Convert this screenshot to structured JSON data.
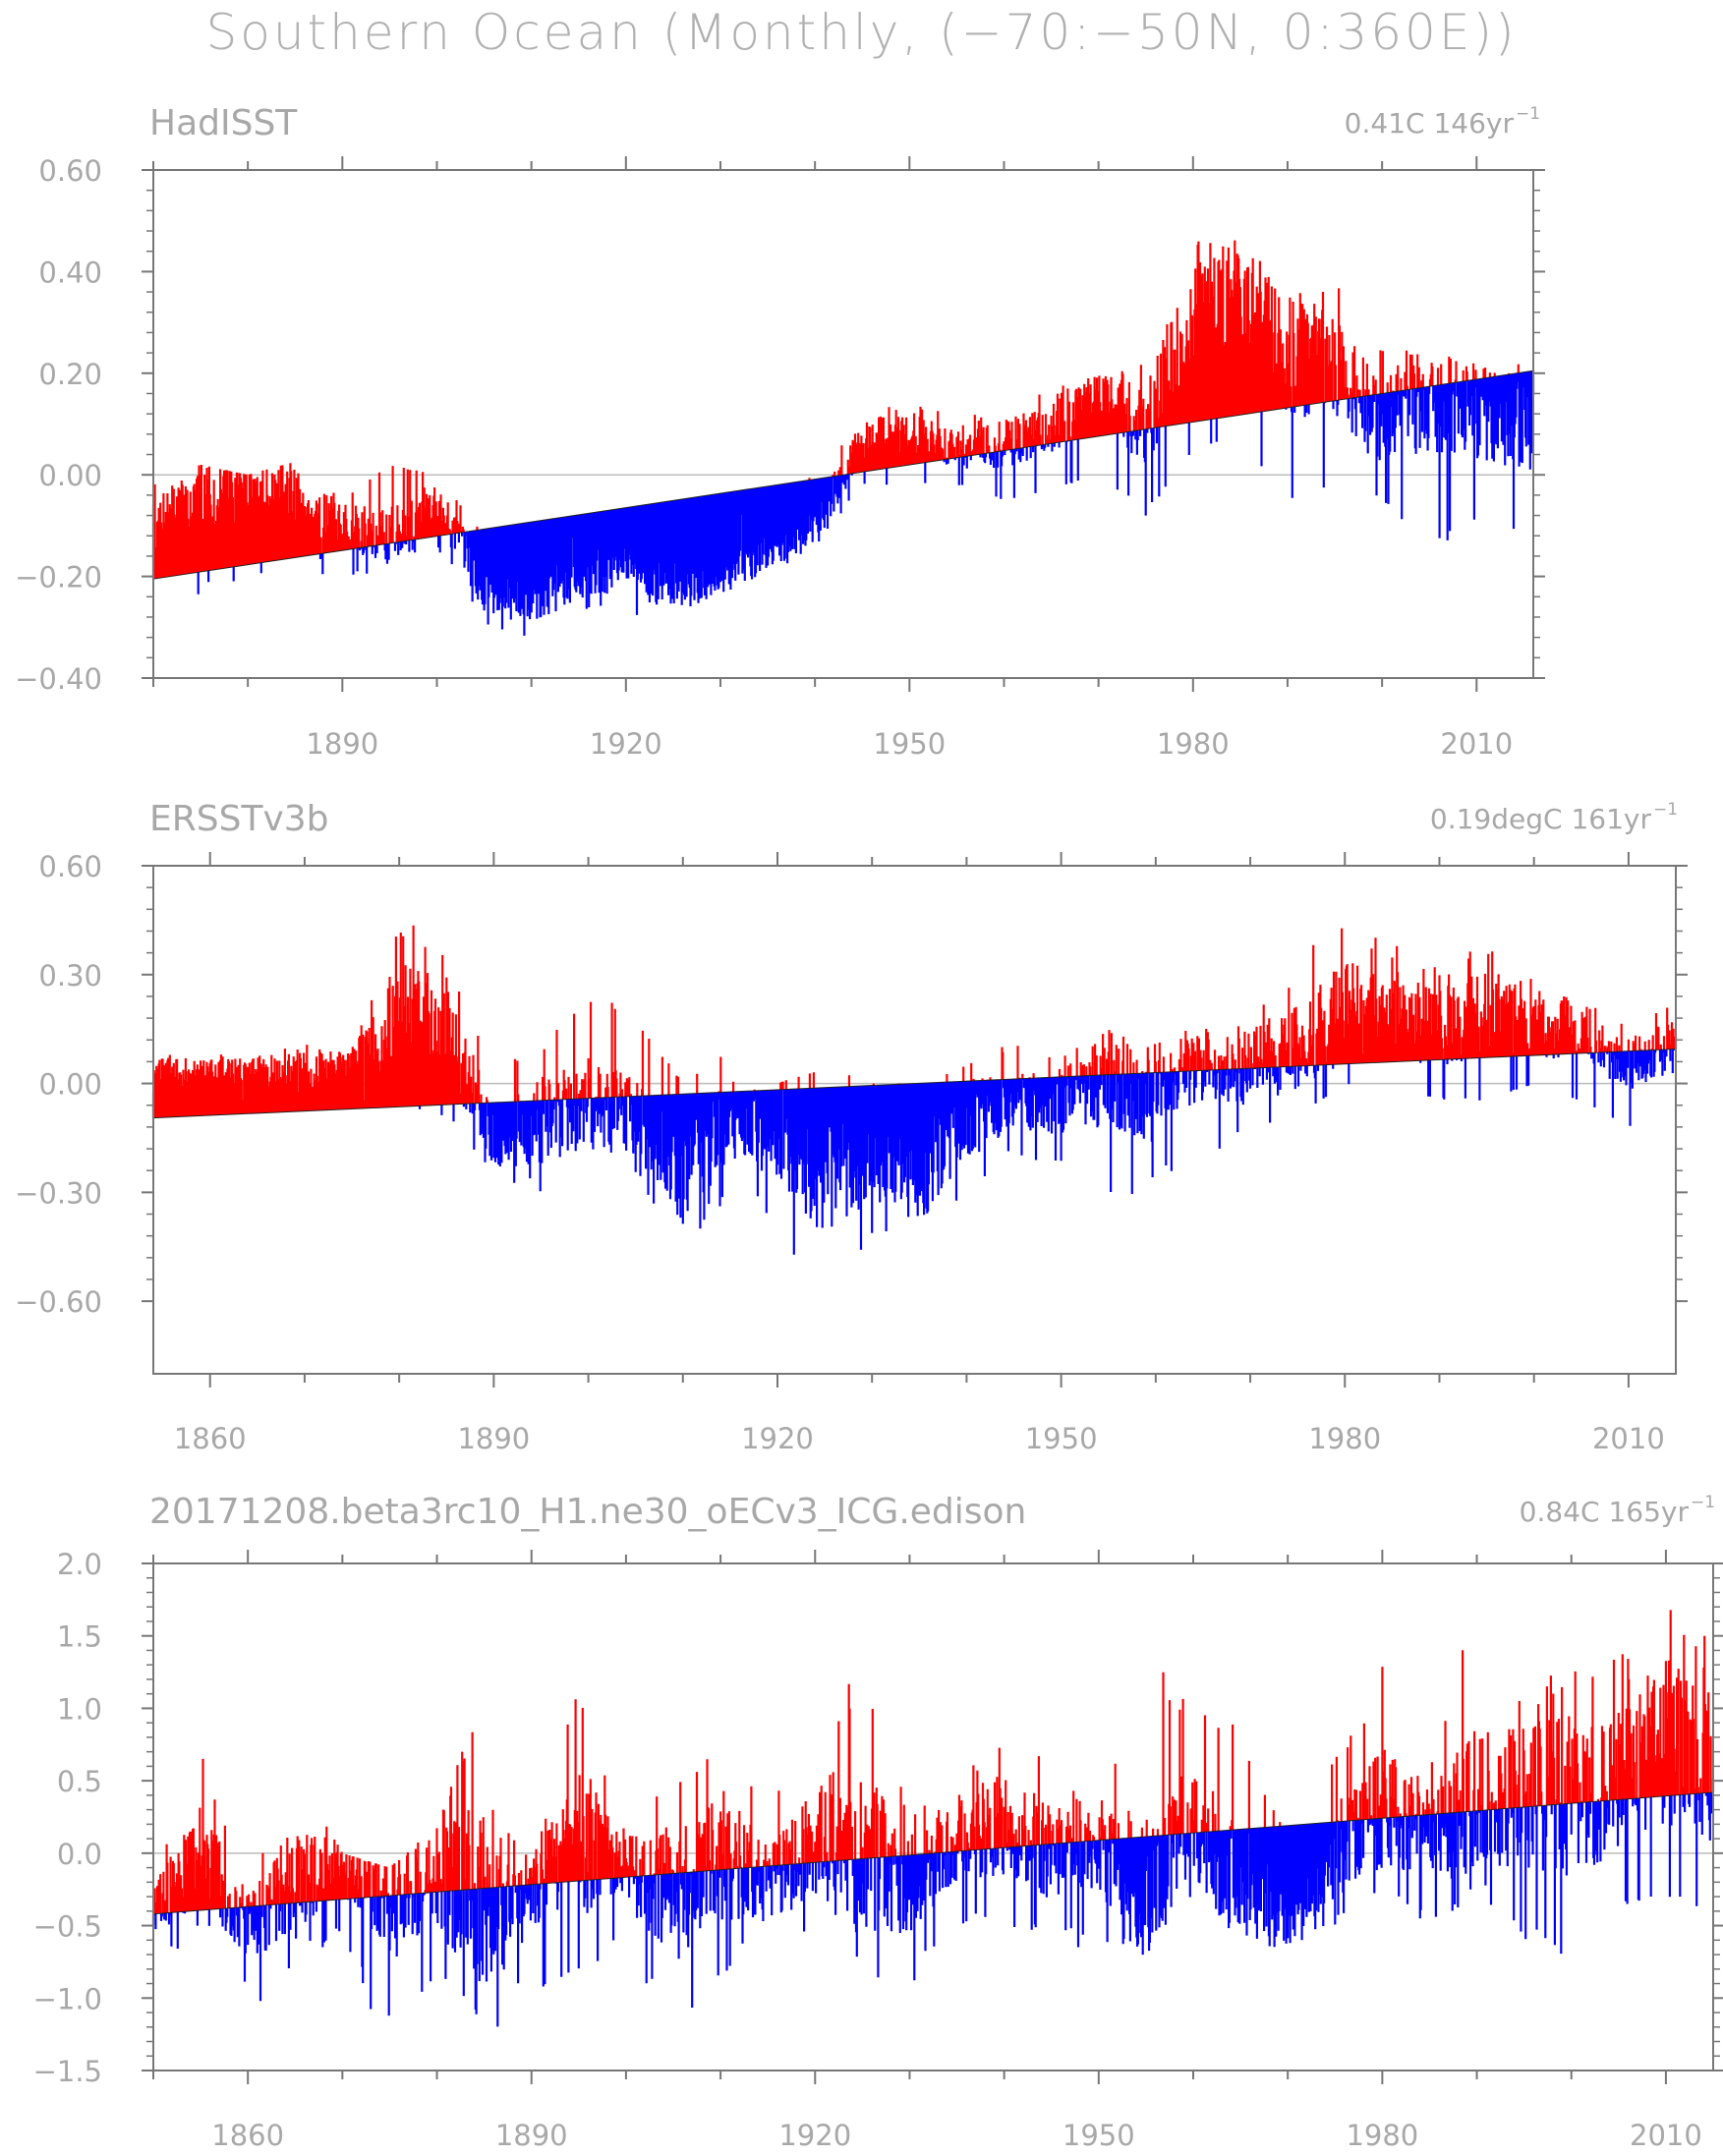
{
  "main_title": "Southern Ocean (Monthly, (−70:−50N, 0:360E))",
  "colors": {
    "positive": "#ff0000",
    "negative": "#0000ff",
    "axis": "#777777",
    "text": "#a8a8a8"
  },
  "chart_data": [
    {
      "type": "area",
      "title": "HadISST",
      "trend_label": "0.41C 146yr",
      "trend_exp": "−1",
      "xlim": [
        1870,
        2016
      ],
      "ylim": [
        -0.4,
        0.6
      ],
      "yticks": [
        -0.4,
        -0.2,
        0.0,
        0.2,
        0.4,
        0.6
      ],
      "ytick_labels": [
        "−0.40",
        "−0.20",
        "0.00",
        "0.20",
        "0.40",
        "0.60"
      ],
      "xticks": [
        1890,
        1920,
        1950,
        1980,
        2010
      ],
      "trend_line": {
        "x": [
          1870,
          2016
        ],
        "y": [
          -0.205,
          0.205
        ]
      },
      "series": [
        {
          "name": "monthly anomaly (approx. annual envelope)",
          "x": [
            1870,
            1875,
            1880,
            1885,
            1890,
            1895,
            1900,
            1905,
            1910,
            1915,
            1920,
            1925,
            1930,
            1935,
            1940,
            1945,
            1950,
            1955,
            1960,
            1965,
            1970,
            1975,
            1980,
            1985,
            1990,
            1995,
            2000,
            2005,
            2010,
            2015
          ],
          "y": [
            -0.1,
            -0.05,
            -0.03,
            -0.05,
            -0.1,
            -0.12,
            -0.05,
            -0.22,
            -0.25,
            -0.2,
            -0.18,
            -0.22,
            -0.2,
            -0.15,
            -0.1,
            0.07,
            0.08,
            0.05,
            0.06,
            0.1,
            0.15,
            0.1,
            0.3,
            0.35,
            0.25,
            0.2,
            0.1,
            0.15,
            0.12,
            0.1
          ],
          "hi": [
            -0.02,
            0.02,
            0.0,
            0.03,
            -0.05,
            0.02,
            0.0,
            -0.12,
            -0.15,
            -0.12,
            -0.1,
            -0.1,
            -0.1,
            -0.05,
            0.0,
            0.12,
            0.15,
            0.12,
            0.12,
            0.18,
            0.2,
            0.22,
            0.48,
            0.52,
            0.4,
            0.38,
            0.25,
            0.28,
            0.25,
            0.22
          ],
          "lo": [
            -0.2,
            -0.25,
            -0.2,
            -0.2,
            -0.2,
            -0.2,
            -0.15,
            -0.3,
            -0.32,
            -0.28,
            -0.28,
            -0.3,
            -0.25,
            -0.2,
            -0.15,
            -0.02,
            -0.02,
            -0.02,
            -0.05,
            -0.03,
            0.0,
            -0.08,
            0.05,
            0.08,
            -0.06,
            -0.02,
            -0.05,
            -0.15,
            -0.1,
            -0.12
          ]
        }
      ]
    },
    {
      "type": "area",
      "title": "ERSSTv3b",
      "trend_label": "0.19degC 161yr",
      "trend_exp": "−1",
      "xlim": [
        1854,
        2015
      ],
      "ylim": [
        -0.8,
        0.6
      ],
      "yticks": [
        -0.6,
        -0.3,
        0.0,
        0.3,
        0.6
      ],
      "ytick_labels": [
        "−0.60",
        "−0.30",
        "0.00",
        "0.30",
        "0.60"
      ],
      "xticks": [
        1860,
        1890,
        1920,
        1950,
        1980,
        2010
      ],
      "trend_line": {
        "x": [
          1854,
          2015
        ],
        "y": [
          -0.095,
          0.095
        ]
      },
      "series": [
        {
          "name": "monthly anomaly (approx. annual envelope)",
          "x": [
            1855,
            1860,
            1865,
            1870,
            1875,
            1880,
            1885,
            1890,
            1895,
            1900,
            1905,
            1910,
            1915,
            1920,
            1925,
            1930,
            1935,
            1940,
            1945,
            1950,
            1955,
            1960,
            1965,
            1970,
            1975,
            1980,
            1985,
            1990,
            1995,
            2000,
            2005,
            2010,
            2014
          ],
          "y": [
            0.02,
            0.03,
            0.04,
            0.02,
            0.05,
            0.2,
            0.15,
            -0.15,
            -0.1,
            -0.05,
            -0.1,
            -0.25,
            -0.1,
            -0.15,
            -0.25,
            -0.2,
            -0.25,
            -0.1,
            -0.05,
            -0.05,
            0.02,
            -0.05,
            0.05,
            0.05,
            0.1,
            0.2,
            0.2,
            0.15,
            0.2,
            0.15,
            0.15,
            0.05,
            0.1
          ],
          "hi": [
            0.08,
            0.08,
            0.08,
            0.12,
            0.1,
            0.5,
            0.35,
            0.05,
            0.1,
            0.25,
            0.2,
            0.0,
            0.1,
            0.0,
            0.05,
            0.0,
            0.0,
            0.05,
            0.12,
            0.08,
            0.15,
            0.12,
            0.18,
            0.25,
            0.32,
            0.52,
            0.42,
            0.35,
            0.38,
            0.3,
            0.25,
            0.15,
            0.22
          ],
          "lo": [
            -0.1,
            -0.05,
            -0.05,
            -0.12,
            -0.05,
            -0.05,
            -0.1,
            -0.25,
            -0.35,
            -0.2,
            -0.25,
            -0.5,
            -0.3,
            -0.4,
            -0.62,
            -0.45,
            -0.52,
            -0.35,
            -0.2,
            -0.25,
            -0.35,
            -0.3,
            -0.2,
            -0.15,
            -0.1,
            0.0,
            -0.02,
            -0.05,
            -0.05,
            0.0,
            -0.05,
            -0.12,
            -0.05
          ]
        }
      ]
    },
    {
      "type": "area",
      "title": "20171208.beta3rc10_H1.ne30_oECv3_ICG.edison",
      "trend_label": "0.84C 165yr",
      "trend_exp": "−1",
      "xlim": [
        1850,
        2015
      ],
      "ylim": [
        -1.5,
        2.0
      ],
      "yticks": [
        -1.5,
        -1.0,
        -0.5,
        0.0,
        0.5,
        1.0,
        1.5,
        2.0
      ],
      "ytick_labels": [
        "−1.5",
        "−1.0",
        "−0.5",
        "0.0",
        "0.5",
        "1.0",
        "1.5",
        "2.0"
      ],
      "xticks": [
        1860,
        1890,
        1920,
        1950,
        1980,
        2010
      ],
      "trend_line": {
        "x": [
          1850,
          2015
        ],
        "y": [
          -0.42,
          0.42
        ]
      },
      "series": [
        {
          "name": "monthly anomaly (approx. annual envelope)",
          "x": [
            1850,
            1855,
            1860,
            1865,
            1870,
            1875,
            1880,
            1885,
            1890,
            1895,
            1900,
            1905,
            1910,
            1915,
            1920,
            1925,
            1930,
            1935,
            1940,
            1945,
            1950,
            1955,
            1960,
            1965,
            1970,
            1975,
            1980,
            1985,
            1990,
            1995,
            2000,
            2005,
            2010,
            2014
          ],
          "y": [
            -0.4,
            0.0,
            -0.5,
            -0.2,
            -0.1,
            -0.4,
            -0.2,
            -0.3,
            -0.3,
            0.1,
            -0.1,
            -0.3,
            0.0,
            -0.2,
            0.1,
            0.0,
            -0.2,
            0.1,
            0.2,
            0.0,
            0.0,
            -0.2,
            0.2,
            -0.2,
            -0.4,
            0.0,
            0.3,
            0.2,
            0.3,
            0.4,
            0.4,
            0.5,
            0.8,
            0.6
          ],
          "hi": [
            -0.2,
            0.75,
            -0.3,
            0.65,
            0.0,
            -0.1,
            0.2,
            1.15,
            -0.1,
            1.2,
            0.2,
            0.5,
            0.8,
            0.4,
            0.9,
            1.3,
            0.3,
            0.6,
            0.8,
            0.65,
            0.3,
            1.35,
            1.1,
            0.9,
            0.1,
            0.7,
            1.3,
            0.6,
            1.8,
            1.2,
            1.25,
            1.4,
            1.85,
            1.55
          ],
          "lo": [
            -0.85,
            -0.5,
            -1.15,
            -0.8,
            -0.6,
            -1.4,
            -1.0,
            -1.35,
            -1.0,
            -0.8,
            -0.7,
            -1.3,
            -0.9,
            -0.5,
            -0.7,
            -0.85,
            -0.95,
            -0.5,
            -0.5,
            -0.6,
            -0.7,
            -0.7,
            -0.3,
            -0.6,
            -0.7,
            -0.5,
            -0.3,
            -0.5,
            -0.3,
            -0.6,
            -0.8,
            -0.4,
            -0.3,
            -0.4
          ]
        }
      ]
    }
  ]
}
